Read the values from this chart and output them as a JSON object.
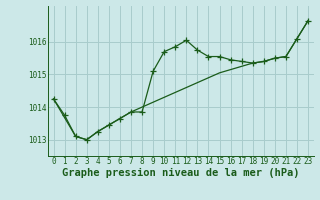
{
  "title": "Graphe pression niveau de la mer (hPa)",
  "background_color": "#cce8e8",
  "grid_color": "#a8cccc",
  "line_color": "#1a5c1a",
  "xlim": [
    -0.5,
    23.5
  ],
  "ylim": [
    1012.5,
    1017.1
  ],
  "yticks": [
    1013,
    1014,
    1015,
    1016
  ],
  "xticks": [
    0,
    1,
    2,
    3,
    4,
    5,
    6,
    7,
    8,
    9,
    10,
    11,
    12,
    13,
    14,
    15,
    16,
    17,
    18,
    19,
    20,
    21,
    22,
    23
  ],
  "line1_x": [
    0,
    1,
    2,
    3,
    4,
    5,
    6,
    7,
    8,
    9,
    10,
    11,
    12,
    13,
    14,
    15,
    16,
    17,
    18,
    19,
    20,
    21,
    22,
    23
  ],
  "line1_y": [
    1014.25,
    1013.75,
    1013.1,
    1013.0,
    1013.25,
    1013.45,
    1013.65,
    1013.85,
    1013.85,
    1015.1,
    1015.7,
    1015.85,
    1016.05,
    1015.75,
    1015.55,
    1015.55,
    1015.45,
    1015.4,
    1015.35,
    1015.4,
    1015.5,
    1015.55,
    1016.1,
    1016.65
  ],
  "line2_x": [
    0,
    2,
    3,
    4,
    5,
    6,
    7,
    15,
    16,
    17,
    18,
    19,
    20,
    21,
    22,
    23
  ],
  "line2_y": [
    1014.25,
    1013.1,
    1013.0,
    1013.25,
    1013.45,
    1013.65,
    1013.85,
    1015.05,
    1015.15,
    1015.25,
    1015.35,
    1015.4,
    1015.5,
    1015.55,
    1016.1,
    1016.65
  ],
  "title_fontsize": 7.5,
  "tick_fontsize": 5.5,
  "title_fontweight": "bold"
}
